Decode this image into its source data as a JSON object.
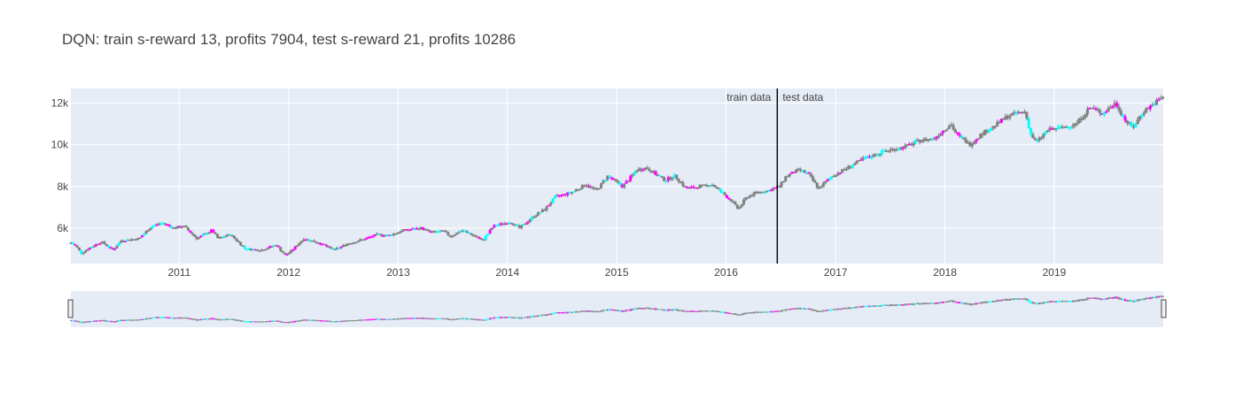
{
  "chart_data": {
    "type": "candlestick",
    "title": "DQN: train s-reward 13, profits 7904, test s-reward 21, profits 10286",
    "xlabel": "",
    "ylabel": "",
    "x_range": [
      "2010-01-04",
      "2019-12-31"
    ],
    "y_range": [
      4300,
      12700
    ],
    "x_ticks": [
      {
        "date": "2011-01-01",
        "label": "2011"
      },
      {
        "date": "2012-01-01",
        "label": "2012"
      },
      {
        "date": "2013-01-01",
        "label": "2013"
      },
      {
        "date": "2014-01-01",
        "label": "2014"
      },
      {
        "date": "2015-01-01",
        "label": "2015"
      },
      {
        "date": "2016-01-01",
        "label": "2016"
      },
      {
        "date": "2017-01-01",
        "label": "2017"
      },
      {
        "date": "2018-01-01",
        "label": "2018"
      },
      {
        "date": "2019-01-01",
        "label": "2019"
      }
    ],
    "y_ticks": [
      {
        "value": 6000,
        "label": "6k"
      },
      {
        "value": 8000,
        "label": "8k"
      },
      {
        "value": 10000,
        "label": "10k"
      },
      {
        "value": 12000,
        "label": "12k"
      }
    ],
    "grid": true,
    "legend": "none",
    "split": {
      "date": "2016-06-20",
      "left_label": "train data",
      "right_label": "test data"
    },
    "action_colors": {
      "hold": "#808080",
      "buy": "#ff00ff",
      "sell": "#00ffff"
    },
    "close_keypoints": [
      [
        "2010-01-04",
        5300
      ],
      [
        "2010-01-20",
        5150
      ],
      [
        "2010-02-08",
        4800
      ],
      [
        "2010-03-01",
        5000
      ],
      [
        "2010-04-15",
        5350
      ],
      [
        "2010-05-25",
        4950
      ],
      [
        "2010-06-20",
        5400
      ],
      [
        "2010-08-20",
        5500
      ],
      [
        "2010-10-01",
        6100
      ],
      [
        "2010-11-05",
        6250
      ],
      [
        "2010-12-15",
        6000
      ],
      [
        "2011-01-15",
        6100
      ],
      [
        "2011-03-01",
        5500
      ],
      [
        "2011-04-20",
        5900
      ],
      [
        "2011-05-10",
        5500
      ],
      [
        "2011-06-20",
        5700
      ],
      [
        "2011-08-10",
        5000
      ],
      [
        "2011-10-01",
        4950
      ],
      [
        "2011-11-20",
        5200
      ],
      [
        "2011-12-20",
        4700
      ],
      [
        "2012-01-10",
        4900
      ],
      [
        "2012-02-20",
        5500
      ],
      [
        "2012-04-10",
        5300
      ],
      [
        "2012-06-01",
        4950
      ],
      [
        "2012-07-15",
        5250
      ],
      [
        "2012-09-15",
        5500
      ],
      [
        "2012-10-25",
        5700
      ],
      [
        "2012-12-01",
        5650
      ],
      [
        "2013-01-20",
        5900
      ],
      [
        "2013-03-20",
        6000
      ],
      [
        "2013-04-20",
        5800
      ],
      [
        "2013-06-01",
        5850
      ],
      [
        "2013-06-25",
        5600
      ],
      [
        "2013-08-01",
        5900
      ],
      [
        "2013-09-10",
        5650
      ],
      [
        "2013-10-10",
        5400
      ],
      [
        "2013-11-15",
        6100
      ],
      [
        "2014-01-10",
        6300
      ],
      [
        "2014-02-10",
        6000
      ],
      [
        "2014-04-01",
        6600
      ],
      [
        "2014-05-05",
        6900
      ],
      [
        "2014-06-10",
        7500
      ],
      [
        "2014-08-01",
        7700
      ],
      [
        "2014-09-20",
        8100
      ],
      [
        "2014-10-25",
        7800
      ],
      [
        "2014-12-01",
        8500
      ],
      [
        "2015-01-20",
        8000
      ],
      [
        "2015-03-10",
        8800
      ],
      [
        "2015-04-10",
        8900
      ],
      [
        "2015-05-10",
        8600
      ],
      [
        "2015-06-10",
        8300
      ],
      [
        "2015-07-15",
        8500
      ],
      [
        "2015-08-20",
        7900
      ],
      [
        "2015-10-10",
        8000
      ],
      [
        "2015-11-15",
        8100
      ],
      [
        "2016-01-20",
        7300
      ],
      [
        "2016-02-10",
        6900
      ],
      [
        "2016-03-10",
        7500
      ],
      [
        "2016-04-10",
        7700
      ],
      [
        "2016-05-20",
        7800
      ],
      [
        "2016-06-27",
        8000
      ],
      [
        "2016-07-20",
        8500
      ],
      [
        "2016-09-01",
        8800
      ],
      [
        "2016-10-01",
        8600
      ],
      [
        "2016-11-05",
        7900
      ],
      [
        "2016-12-20",
        8500
      ],
      [
        "2017-02-10",
        8900
      ],
      [
        "2017-04-01",
        9300
      ],
      [
        "2017-06-15",
        9700
      ],
      [
        "2017-08-20",
        9900
      ],
      [
        "2017-10-10",
        10200
      ],
      [
        "2017-11-25",
        10300
      ],
      [
        "2018-01-20",
        11000
      ],
      [
        "2018-02-08",
        10500
      ],
      [
        "2018-03-25",
        10000
      ],
      [
        "2018-05-01",
        10500
      ],
      [
        "2018-06-15",
        10900
      ],
      [
        "2018-08-01",
        11400
      ],
      [
        "2018-09-25",
        11600
      ],
      [
        "2018-10-15",
        10500
      ],
      [
        "2018-11-01",
        10100
      ],
      [
        "2018-12-10",
        10700
      ],
      [
        "2019-01-20",
        10800
      ],
      [
        "2019-03-15",
        11000
      ],
      [
        "2019-05-01",
        11800
      ],
      [
        "2019-06-10",
        11500
      ],
      [
        "2019-07-25",
        12000
      ],
      [
        "2019-08-25",
        11200
      ],
      [
        "2019-09-20",
        10800
      ],
      [
        "2019-10-25",
        11600
      ],
      [
        "2019-12-31",
        12300
      ]
    ]
  }
}
